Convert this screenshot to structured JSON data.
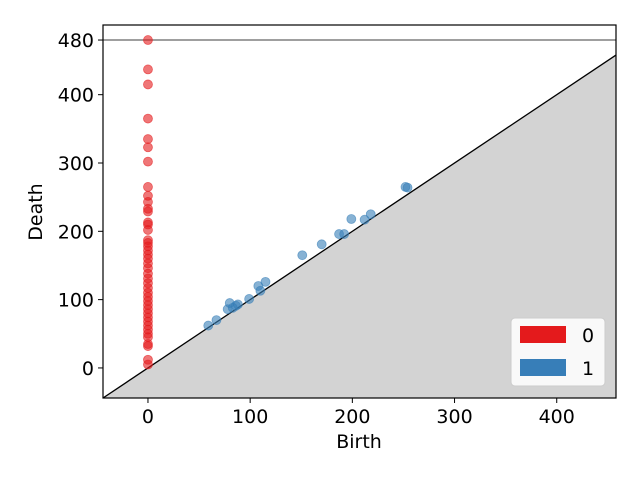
{
  "chart_data": {
    "type": "scatter",
    "title": "",
    "xlabel": "Birth",
    "ylabel": "Death",
    "xlim": [
      -44,
      458
    ],
    "ylim": [
      -44,
      502
    ],
    "x_ticks": [
      0,
      100,
      200,
      300,
      400
    ],
    "y_ticks": [
      0,
      100,
      200,
      300,
      400,
      480
    ],
    "infinity_line": {
      "y": 480,
      "label": "480",
      "color": "#666666"
    },
    "diagonal": {
      "fill": "#d3d3d3"
    },
    "grid": false,
    "legend": {
      "placement": "bottom-right"
    },
    "series": [
      {
        "name": "0",
        "color": "#e41a1c",
        "points": [
          [
            0,
            480
          ],
          [
            0,
            437
          ],
          [
            0,
            415
          ],
          [
            0,
            365
          ],
          [
            0,
            335
          ],
          [
            0,
            323
          ],
          [
            0,
            302
          ],
          [
            0,
            265
          ],
          [
            0,
            252
          ],
          [
            0,
            243
          ],
          [
            0,
            233
          ],
          [
            0,
            229
          ],
          [
            0,
            213
          ],
          [
            0,
            210
          ],
          [
            0,
            202
          ],
          [
            0,
            187
          ],
          [
            0,
            183
          ],
          [
            0,
            178
          ],
          [
            0,
            172
          ],
          [
            0,
            166
          ],
          [
            0,
            160
          ],
          [
            0,
            153
          ],
          [
            0,
            146
          ],
          [
            0,
            138
          ],
          [
            0,
            131
          ],
          [
            0,
            124
          ],
          [
            0,
            117
          ],
          [
            0,
            110
          ],
          [
            0,
            104
          ],
          [
            0,
            98
          ],
          [
            0,
            92
          ],
          [
            0,
            86
          ],
          [
            0,
            80
          ],
          [
            0,
            74
          ],
          [
            0,
            68
          ],
          [
            0,
            62
          ],
          [
            0,
            56
          ],
          [
            0,
            50
          ],
          [
            0,
            45
          ],
          [
            0,
            35
          ],
          [
            0,
            32
          ],
          [
            0,
            12
          ],
          [
            0,
            5
          ]
        ]
      },
      {
        "name": "1",
        "color": "#377eb8",
        "points": [
          [
            59,
            62
          ],
          [
            67,
            70
          ],
          [
            78,
            86
          ],
          [
            80,
            95
          ],
          [
            83,
            88
          ],
          [
            86,
            91
          ],
          [
            88,
            93
          ],
          [
            99,
            101
          ],
          [
            108,
            120
          ],
          [
            110,
            113
          ],
          [
            115,
            126
          ],
          [
            151,
            165
          ],
          [
            170,
            181
          ],
          [
            187,
            196
          ],
          [
            192,
            196
          ],
          [
            199,
            218
          ],
          [
            212,
            217
          ],
          [
            218,
            225
          ],
          [
            252,
            265
          ],
          [
            254,
            264
          ]
        ]
      }
    ]
  }
}
